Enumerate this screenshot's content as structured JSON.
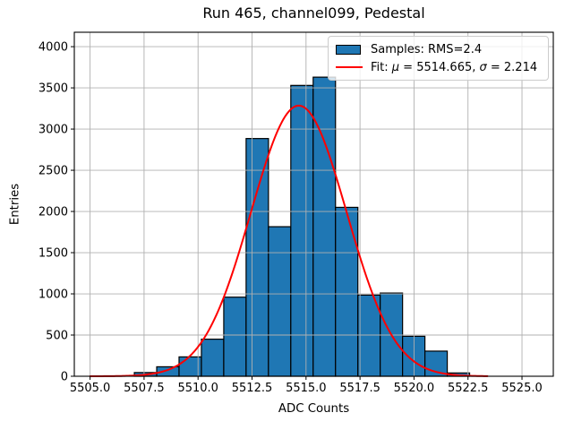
{
  "title": "Run 465, channel099, Pedestal",
  "x_axis_label": "ADC Counts",
  "y_axis_label": "Entries",
  "legend": {
    "samples_label": "Samples: RMS=2.4",
    "fit_prefix": "Fit: ",
    "mu_symbol": "μ",
    "mu_rest": " = 5514.665, ",
    "sigma_symbol": "σ",
    "sigma_rest": " = 2.214"
  },
  "colors": {
    "bar_fill": "#1f77b4",
    "bar_edge": "#000000",
    "fit_line": "#ff0000",
    "grid": "#b0b0b0",
    "axes": "#000000",
    "legend_border": "#cccccc"
  },
  "chart_data": {
    "type": "bar",
    "subtype": "histogram",
    "title": "Run 465, channel099, Pedestal",
    "xlabel": "ADC Counts",
    "ylabel": "Entries",
    "grid": true,
    "legend_position": "upper right",
    "xlim": [
      5504.27,
      5526.45
    ],
    "ylim": [
      0,
      4175
    ],
    "histogram": {
      "bin_start": 5507.05,
      "bin_width": 1.035,
      "counts": [
        45,
        115,
        235,
        450,
        960,
        2885,
        1815,
        3530,
        3630,
        2050,
        985,
        1010,
        485,
        305,
        40
      ],
      "rms": 2.4
    },
    "fit_curve": {
      "shape": "gaussian",
      "mu": 5514.665,
      "sigma": 2.214,
      "amplitude": 3285,
      "x_start": 5505.0,
      "x_end": 5523.45
    },
    "x_ticks": [
      5505.0,
      5507.5,
      5510.0,
      5512.5,
      5515.0,
      5517.5,
      5520.0,
      5522.5,
      5525.0
    ],
    "x_tick_labels": [
      "5505.0",
      "5507.5",
      "5510.0",
      "5512.5",
      "5515.0",
      "5517.5",
      "5520.0",
      "5522.5",
      "5525.0"
    ],
    "y_ticks": [
      0,
      500,
      1000,
      1500,
      2000,
      2500,
      3000,
      3500,
      4000
    ],
    "y_tick_labels": [
      "0",
      "500",
      "1000",
      "1500",
      "2000",
      "2500",
      "3000",
      "3500",
      "4000"
    ]
  }
}
